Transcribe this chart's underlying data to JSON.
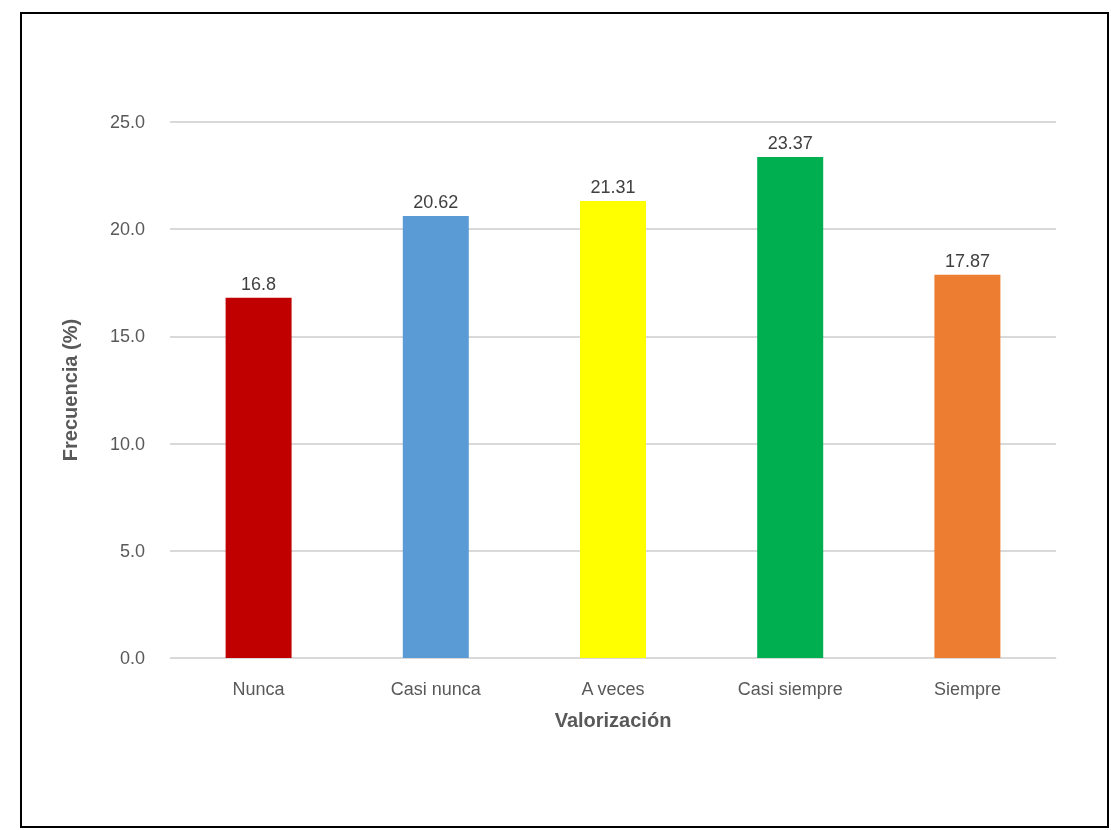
{
  "chart_data": {
    "type": "bar",
    "xlabel": "Valorización",
    "ylabel": "Frecuencia (%)",
    "categories": [
      "Nunca",
      "Casi nunca",
      "A veces",
      "Casi siempre",
      "Siempre"
    ],
    "values": [
      16.8,
      20.62,
      21.31,
      23.37,
      17.87
    ],
    "colors": [
      "#c00000",
      "#5b9bd5",
      "#ffff00",
      "#00b050",
      "#ed7d31"
    ],
    "ylim": [
      0,
      25
    ],
    "yticks": [
      {
        "value": 0,
        "label": "0.0"
      },
      {
        "value": 5,
        "label": "5.0"
      },
      {
        "value": 10,
        "label": "10.0"
      },
      {
        "value": 15,
        "label": "15.0"
      },
      {
        "value": 20,
        "label": "20.0"
      },
      {
        "value": 25,
        "label": "25.0"
      }
    ],
    "grid": "y",
    "data_labels": true
  }
}
